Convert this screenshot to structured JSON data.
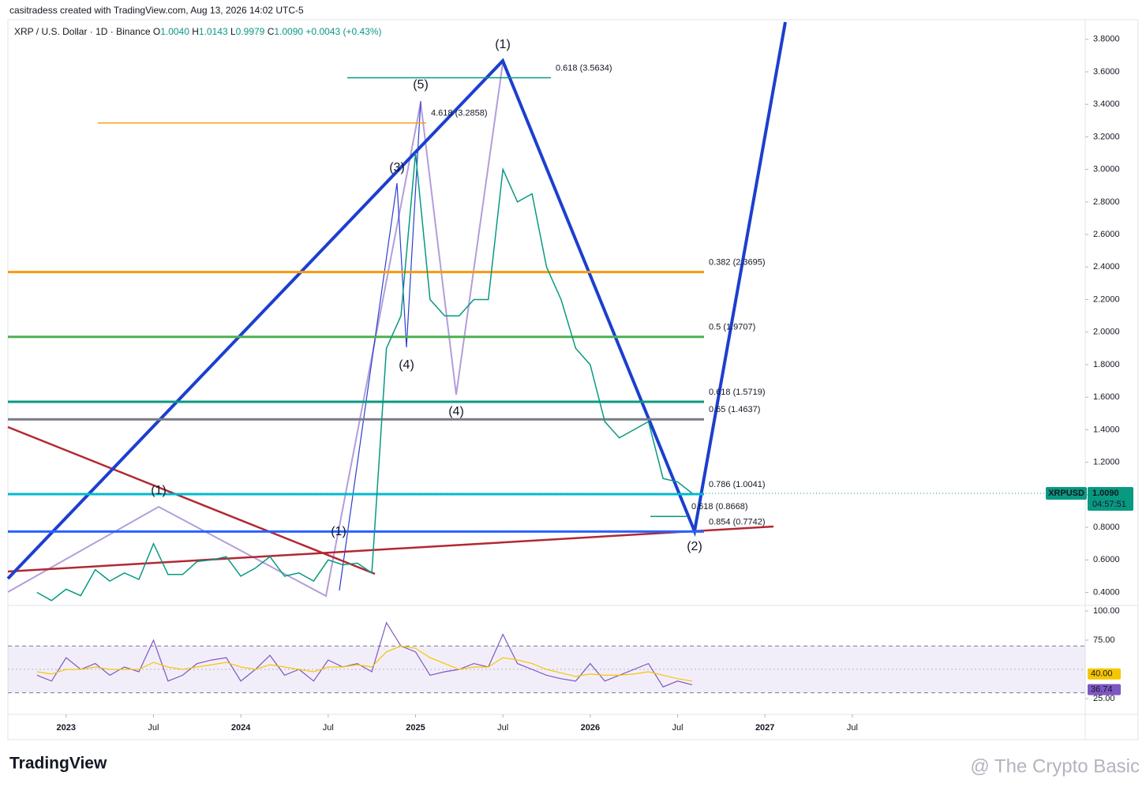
{
  "header": {
    "credit": "casitradess created with TradingView.com, Aug 13, 2026 14:02 UTC-5",
    "symbol": "XRP / U.S. Dollar · 1D · Binance",
    "ohlc": [
      {
        "k": "O",
        "v": "1.0040"
      },
      {
        "k": "H",
        "v": "1.0143"
      },
      {
        "k": "L",
        "v": "0.9979"
      },
      {
        "k": "C",
        "v": "1.0090"
      }
    ],
    "change": "+0.0043 (+0.43%)"
  },
  "chart_data": [
    {
      "type": "line",
      "color": "#089981",
      "grid": false,
      "x": [
        "2022-11",
        "2022-12",
        "2023-01",
        "2023-02",
        "2023-03",
        "2023-04",
        "2023-05",
        "2023-06",
        "2023-07",
        "2023-08",
        "2023-09",
        "2023-10",
        "2023-11",
        "2023-12",
        "2024-01",
        "2024-02",
        "2024-03",
        "2024-04",
        "2024-05",
        "2024-06",
        "2024-07",
        "2024-08",
        "2024-09",
        "2024-10",
        "2024-11",
        "2024-12",
        "2025-01",
        "2025-02",
        "2025-03",
        "2025-04",
        "2025-05",
        "2025-06",
        "2025-07",
        "2025-08",
        "2025-09",
        "2025-10",
        "2025-11",
        "2025-12",
        "2026-01",
        "2026-02",
        "2026-03",
        "2026-04",
        "2026-05",
        "2026-06",
        "2026-07",
        "2026-08"
      ],
      "values": [
        0.4,
        0.35,
        0.42,
        0.38,
        0.54,
        0.47,
        0.52,
        0.48,
        0.7,
        0.51,
        0.51,
        0.59,
        0.6,
        0.62,
        0.5,
        0.55,
        0.62,
        0.5,
        0.52,
        0.47,
        0.6,
        0.57,
        0.58,
        0.52,
        1.9,
        2.1,
        3.1,
        2.2,
        2.1,
        2.1,
        2.2,
        2.2,
        3.0,
        2.8,
        2.85,
        2.4,
        2.2,
        1.9,
        1.8,
        1.45,
        1.35,
        1.4,
        1.45,
        1.1,
        1.08,
        1.009
      ],
      "xlim": [
        "2022-09",
        "2028-11"
      ],
      "xticks": [
        {
          "value": "2023-01",
          "label": "2023"
        },
        {
          "value": "2023-07",
          "label": "Jul"
        },
        {
          "value": "2024-01",
          "label": "2024"
        },
        {
          "value": "2024-07",
          "label": "Jul"
        },
        {
          "value": "2025-01",
          "label": "2025"
        },
        {
          "value": "2025-07",
          "label": "Jul"
        },
        {
          "value": "2026-01",
          "label": "2026"
        },
        {
          "value": "2026-07",
          "label": "Jul"
        },
        {
          "value": "2027-01",
          "label": "2027"
        },
        {
          "value": "2027-07",
          "label": "Jul"
        }
      ],
      "ylim": [
        0.32,
        3.92
      ],
      "yticks": [
        {
          "value": 0.4,
          "label": "0.4000"
        },
        {
          "value": 0.6,
          "label": "0.6000"
        },
        {
          "value": 0.8,
          "label": "0.8000"
        },
        {
          "value": 1.0,
          "label": "1.0000"
        },
        {
          "value": 1.2,
          "label": "1.2000"
        },
        {
          "value": 1.4,
          "label": "1.4000"
        },
        {
          "value": 1.6,
          "label": "1.6000"
        },
        {
          "value": 1.8,
          "label": "1.8000"
        },
        {
          "value": 2.0,
          "label": "2.0000"
        },
        {
          "value": 2.2,
          "label": "2.2000"
        },
        {
          "value": 2.4,
          "label": "2.4000"
        },
        {
          "value": 2.6,
          "label": "2.6000"
        },
        {
          "value": 2.8,
          "label": "2.8000"
        },
        {
          "value": 3.0,
          "label": "3.0000"
        },
        {
          "value": 3.2,
          "label": "3.2000"
        },
        {
          "value": 3.4,
          "label": "3.4000"
        },
        {
          "value": 3.6,
          "label": "3.6000"
        },
        {
          "value": 3.8,
          "label": "3.8000"
        }
      ],
      "levels": [
        {
          "label": "0.618 (3.5634)",
          "value": 3.5634,
          "color": "#089981"
        },
        {
          "label": "4.618 (3.2858)",
          "value": 3.2858,
          "color": "#f7a21b"
        },
        {
          "label": "0.382 (2.3695)",
          "value": 2.3695,
          "color": "#f59a0f"
        },
        {
          "label": "0.5 (1.9707)",
          "value": 1.9707,
          "color": "#4caf50"
        },
        {
          "label": "0.618 (1.5719)",
          "value": 1.5719,
          "color": "#089981"
        },
        {
          "label": "0.65 (1.4637)",
          "value": 1.4637,
          "color": "#787b86"
        },
        {
          "label": "0.786 (1.0041)",
          "value": 1.0041,
          "color": "#00bcd4"
        },
        {
          "label": "0.618 (0.8668)",
          "value": 0.8668,
          "color": "#089981"
        },
        {
          "label": "0.854 (0.7742)",
          "value": 0.7742,
          "color": "#2962ff"
        }
      ],
      "waves": [
        {
          "text": "(1)",
          "color": "#2a3fb0"
        },
        {
          "text": "(5)",
          "color": "#2a3fb0"
        },
        {
          "text": "(3)",
          "color": "#2a3fb0"
        },
        {
          "text": "(4)",
          "color": "#2a3fb0"
        },
        {
          "text": "(4)",
          "color": "#a49cc9"
        },
        {
          "text": "(1)",
          "color": "#2a3fb0"
        },
        {
          "text": "(2)",
          "color": "#2a3fb0"
        },
        {
          "text": "(1)",
          "color": "#b39ddb"
        }
      ],
      "badge": {
        "symbol": "XRPUSD",
        "value": 1.009,
        "label": "1.0090",
        "countdown": "04:57:51",
        "color": "#089981"
      }
    },
    {
      "type": "line",
      "grid": false,
      "series": [
        {
          "color": "#7e57c2",
          "values": [
            45,
            40,
            60,
            50,
            55,
            45,
            52,
            48,
            75,
            40,
            45,
            55,
            58,
            60,
            40,
            50,
            62,
            45,
            50,
            40,
            58,
            52,
            55,
            48,
            90,
            70,
            65,
            45,
            48,
            50,
            55,
            52,
            80,
            55,
            50,
            45,
            42,
            40,
            55,
            40,
            45,
            50,
            55,
            35,
            40,
            36.74
          ]
        },
        {
          "color": "#f7c600",
          "values": [
            48,
            46,
            50,
            50,
            52,
            50,
            50,
            50,
            56,
            52,
            50,
            52,
            54,
            56,
            52,
            50,
            54,
            52,
            50,
            48,
            52,
            52,
            54,
            52,
            65,
            70,
            68,
            60,
            55,
            50,
            52,
            52,
            60,
            58,
            55,
            50,
            47,
            44,
            46,
            45,
            45,
            46,
            48,
            45,
            42,
            40
          ]
        }
      ],
      "ylim": [
        11.5,
        104.7
      ],
      "yticks": [
        {
          "value": 100,
          "label": "100.00"
        },
        {
          "value": 75,
          "label": "75.00"
        },
        {
          "value": 25,
          "label": "25.00"
        }
      ],
      "band": [
        30,
        70
      ],
      "midline": 50,
      "band_color": "#7e57c2",
      "badges": [
        {
          "value": 40,
          "label": "40.00",
          "color": "#f7c600"
        },
        {
          "value": 36.74,
          "label": "36.74",
          "color": "#7e57c2"
        }
      ]
    }
  ],
  "footer": {
    "logo": "TradingView",
    "watermark": "@ The Crypto Basic"
  }
}
